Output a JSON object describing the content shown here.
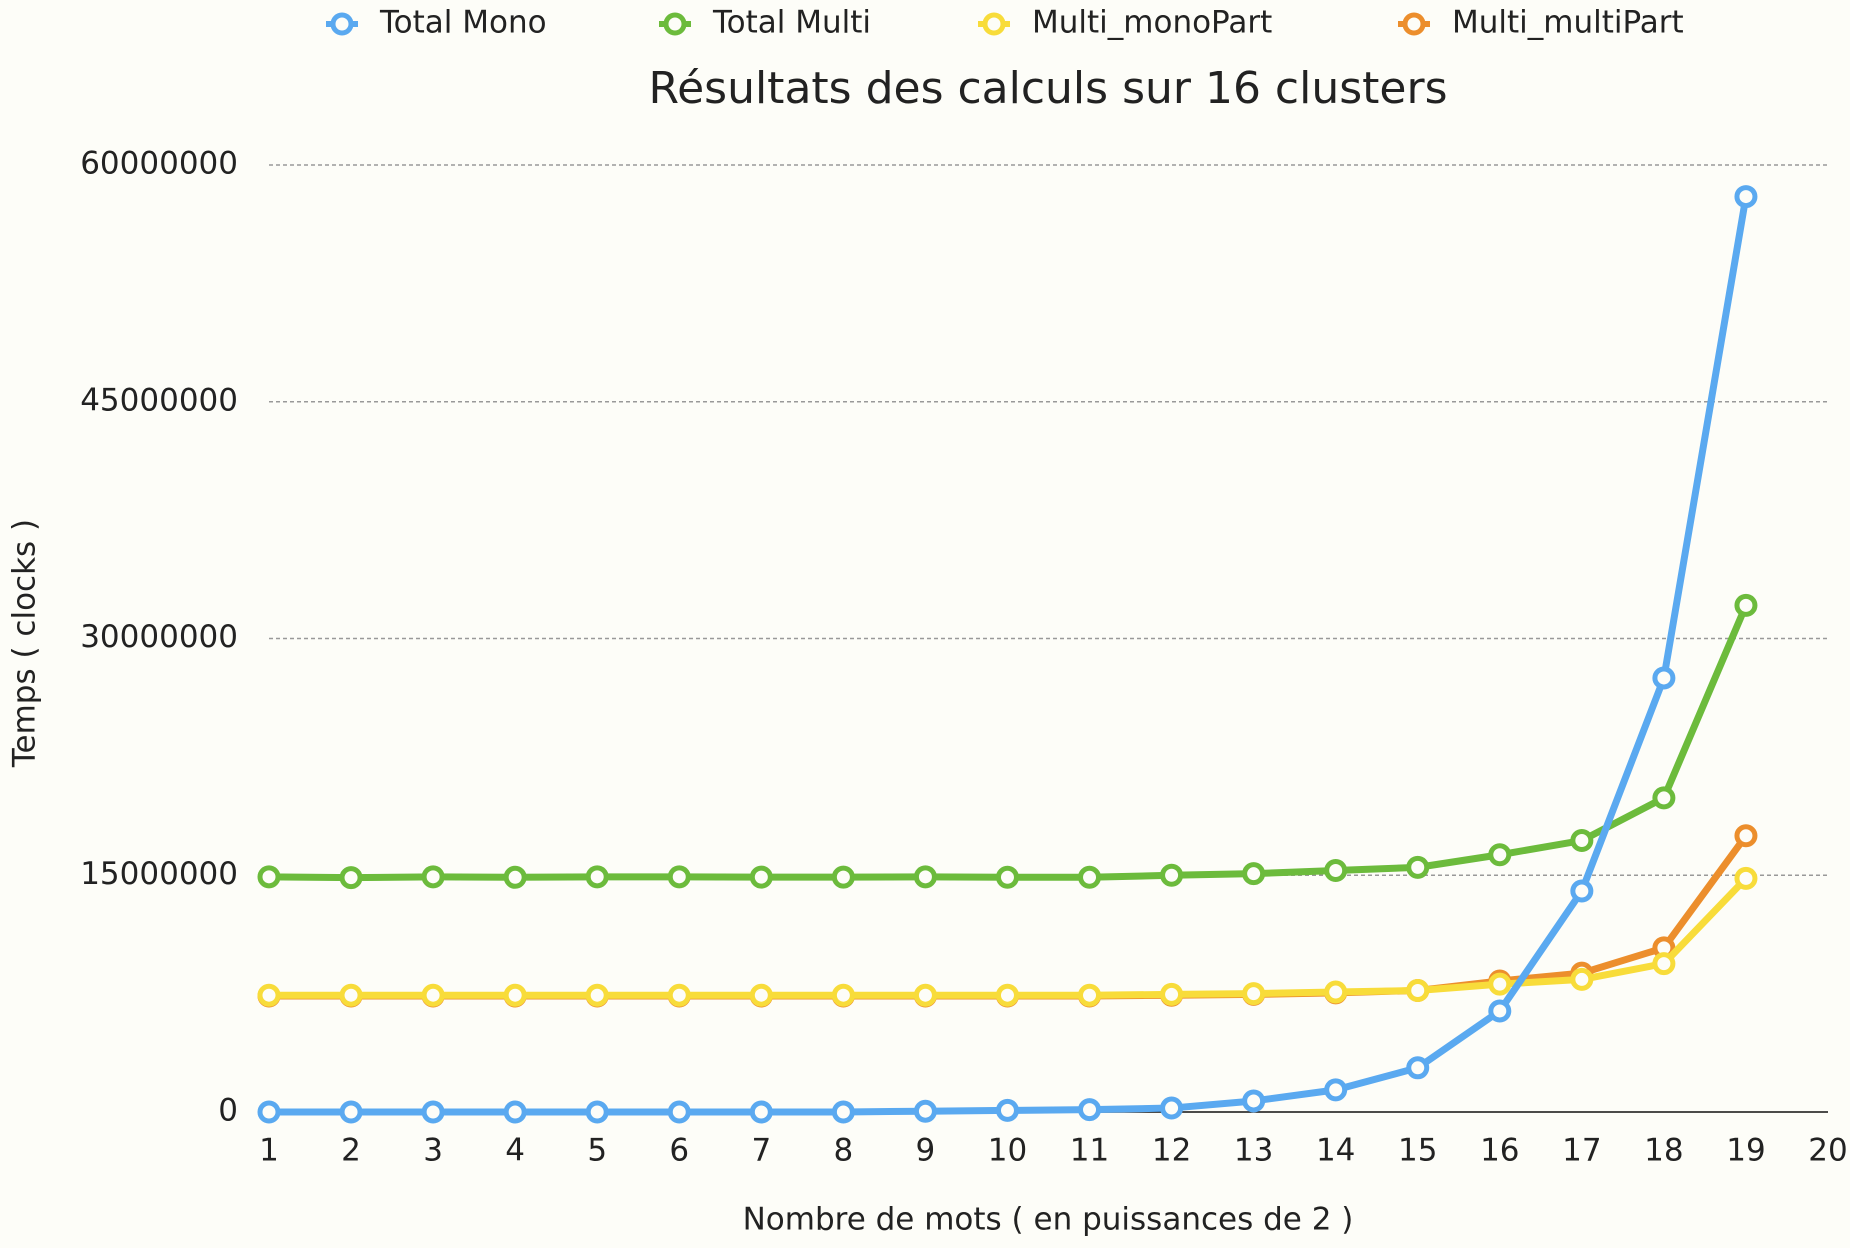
{
  "chart_data": {
    "type": "line",
    "title": "Résultats des calculs sur 16 clusters",
    "x_label": "Nombre de mots ( en puissances de 2 )",
    "y_label": "Temps ( clocks )",
    "x": [
      1,
      2,
      3,
      4,
      5,
      6,
      7,
      8,
      9,
      10,
      11,
      12,
      13,
      14,
      15,
      16,
      17,
      18,
      19
    ],
    "xlim": [
      1,
      20
    ],
    "xticks": [
      1,
      2,
      3,
      4,
      5,
      6,
      7,
      8,
      9,
      10,
      11,
      12,
      13,
      14,
      15,
      16,
      17,
      18,
      19,
      20
    ],
    "ylim": [
      0,
      60000000
    ],
    "yticks": [
      0,
      15000000,
      30000000,
      45000000,
      60000000
    ],
    "grid": true,
    "legend": "top",
    "series": [
      {
        "name": "Total Mono",
        "color": "#5aa9f0",
        "values": [
          0,
          0,
          0,
          0,
          0,
          0,
          0,
          0,
          50000,
          100000,
          150000,
          250000,
          700000,
          1400000,
          2800000,
          6400000,
          14000000,
          27500000,
          58000000
        ]
      },
      {
        "name": "Total Multi",
        "color": "#6cbb3c",
        "values": [
          14900000,
          14850000,
          14900000,
          14870000,
          14900000,
          14900000,
          14880000,
          14880000,
          14900000,
          14870000,
          14870000,
          15000000,
          15100000,
          15300000,
          15500000,
          16300000,
          17200000,
          19900000,
          32100000
        ]
      },
      {
        "name": "Multi_monoPart",
        "color": "#f8dc3a",
        "values": [
          7400000,
          7400000,
          7400000,
          7400000,
          7400000,
          7400000,
          7400000,
          7400000,
          7400000,
          7400000,
          7400000,
          7450000,
          7500000,
          7600000,
          7700000,
          8100000,
          8400000,
          9400000,
          14800000
        ]
      },
      {
        "name": "Multi_multiPart",
        "color": "#ec8e2c",
        "values": [
          7350000,
          7350000,
          7350000,
          7350000,
          7350000,
          7350000,
          7350000,
          7350000,
          7350000,
          7350000,
          7350000,
          7400000,
          7450000,
          7550000,
          7700000,
          8300000,
          8800000,
          10400000,
          17500000
        ]
      }
    ]
  }
}
